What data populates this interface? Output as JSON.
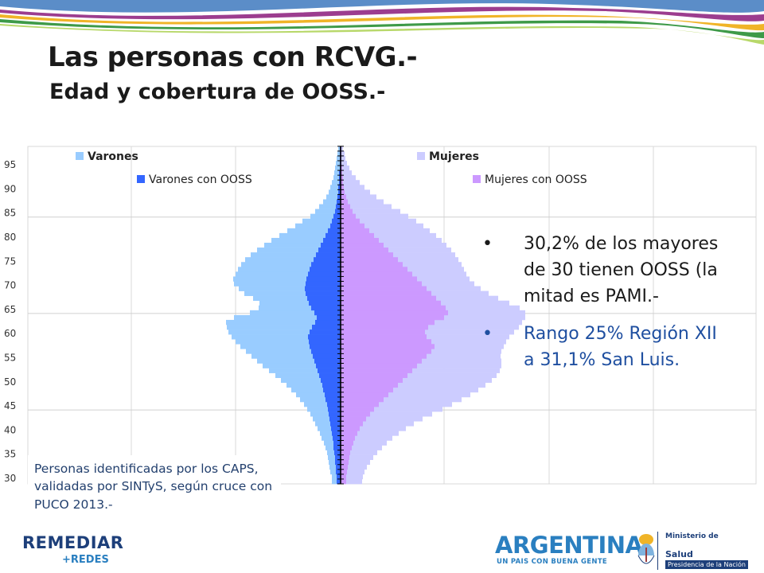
{
  "slide": {
    "title": "Las personas con RCVG.-",
    "subtitle": "Edad y cobertura de OOSS.-",
    "bullets": [
      "30,2% de los mayores de 30 tienen OOSS (la mitad es PAMI.-",
      "Rango 25% Región XII a 31,1% San Luis."
    ],
    "bullet_glyph": "•",
    "source_note": "Personas identificadas por los CAPS, validadas por SINTyS, según cruce con PUCO 2013.-",
    "colors": {
      "varones": "#99ccff",
      "varones_oos": "#3366ff",
      "mujeres": "#ccccff",
      "mujeres_oos": "#cc99ff",
      "title": "#1a1a1a",
      "bullet_highlight": "#1f4fa0"
    }
  },
  "footer": {
    "remediar": "REMEDIAR",
    "redes": "+REDES",
    "argentina": "ARGENTINA",
    "argentina_tagline": "UN PAIS CON BUENA GENTE",
    "ministry": "Ministerio de",
    "ministry_area": "Salud",
    "presidency": "Presidencia de la Nación"
  },
  "chart_data": {
    "type": "bar",
    "orientation": "horizontal",
    "subtype": "population pyramid",
    "title": "",
    "xlabel": "",
    "ylabel": "",
    "y_tick_labels": [
      "30",
      "35",
      "40",
      "45",
      "50",
      "55",
      "60",
      "65",
      "70",
      "75",
      "80",
      "85",
      "90",
      "95"
    ],
    "grid": true,
    "legend": [
      "Varones",
      "Varones con OOSS",
      "Mujeres",
      "Mujeres con OOSS"
    ],
    "legend_placement": "top",
    "ages": [
      30,
      31,
      32,
      33,
      34,
      35,
      36,
      37,
      38,
      39,
      40,
      41,
      42,
      43,
      44,
      45,
      46,
      47,
      48,
      49,
      50,
      51,
      52,
      53,
      54,
      55,
      56,
      57,
      58,
      59,
      60,
      61,
      62,
      63,
      64,
      65,
      66,
      67,
      68,
      69,
      70,
      71,
      72,
      73,
      74,
      75,
      76,
      77,
      78,
      79,
      80,
      81,
      82,
      83,
      84,
      85,
      86,
      87,
      88,
      89,
      90,
      91,
      92,
      93,
      94,
      95,
      96,
      97,
      98,
      99
    ],
    "series": [
      {
        "name": "Varones",
        "side": "left",
        "values": [
          11,
          11,
          13,
          14,
          15,
          16,
          17,
          19,
          21,
          24,
          26,
          29,
          32,
          35,
          38,
          42,
          46,
          51,
          56,
          62,
          68,
          75,
          82,
          90,
          98,
          105,
          112,
          119,
          126,
          132,
          137,
          141,
          143,
          144,
          134,
          114,
          103,
          102,
          110,
          121,
          128,
          134,
          135,
          132,
          129,
          125,
          120,
          113,
          105,
          96,
          87,
          77,
          67,
          57,
          48,
          38,
          32,
          27,
          22,
          18,
          15,
          13,
          11,
          9,
          8,
          7,
          6,
          5,
          4,
          3
        ]
      },
      {
        "name": "Varones con OOSS",
        "side": "left",
        "values": [
          5,
          5,
          6,
          6,
          7,
          7,
          8,
          9,
          9,
          10,
          11,
          12,
          13,
          14,
          15,
          16,
          17,
          19,
          20,
          22,
          23,
          25,
          27,
          29,
          31,
          33,
          35,
          37,
          39,
          40,
          41,
          39,
          36,
          32,
          30,
          33,
          37,
          40,
          42,
          44,
          45,
          44,
          43,
          41,
          39,
          37,
          34,
          31,
          28,
          25,
          22,
          19,
          16,
          13,
          11,
          9,
          7,
          6,
          5,
          4,
          3,
          3,
          2,
          2,
          2,
          1,
          1,
          1,
          1,
          1
        ]
      },
      {
        "name": "Mujeres",
        "side": "right",
        "values": [
          27,
          28,
          30,
          33,
          37,
          41,
          46,
          52,
          58,
          65,
          73,
          82,
          92,
          103,
          115,
          128,
          140,
          152,
          163,
          173,
          182,
          190,
          196,
          200,
          202,
          202,
          201,
          202,
          205,
          208,
          212,
          218,
          224,
          228,
          232,
          232,
          225,
          212,
          198,
          186,
          176,
          168,
          162,
          158,
          155,
          152,
          148,
          144,
          139,
          133,
          127,
          120,
          112,
          104,
          95,
          85,
          75,
          64,
          54,
          45,
          37,
          30,
          24,
          19,
          14,
          11,
          8,
          6,
          5,
          3
        ]
      },
      {
        "name": "Mujeres con OOSS",
        "side": "right",
        "values": [
          7,
          7,
          8,
          9,
          10,
          11,
          12,
          14,
          16,
          18,
          21,
          24,
          28,
          32,
          37,
          42,
          48,
          54,
          60,
          66,
          72,
          78,
          84,
          90,
          96,
          102,
          108,
          114,
          118,
          114,
          108,
          106,
          110,
          118,
          130,
          135,
          132,
          126,
          120,
          114,
          108,
          102,
          96,
          90,
          84,
          78,
          72,
          66,
          60,
          54,
          48,
          42,
          36,
          30,
          24,
          19,
          15,
          12,
          9,
          7,
          5,
          4,
          3,
          3,
          2,
          2,
          1,
          1,
          1,
          1
        ]
      }
    ]
  }
}
